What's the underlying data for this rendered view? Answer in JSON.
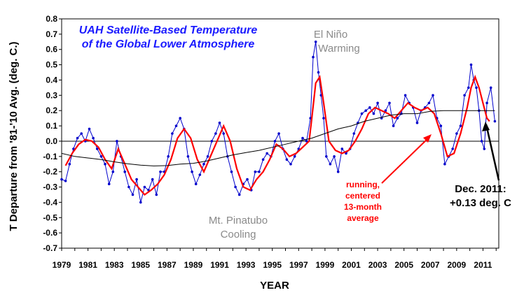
{
  "chart_data": {
    "type": "line",
    "title": [
      "UAH Satellite-Based Temperature",
      "of the Global Lower Atmosphere"
    ],
    "xlabel": "YEAR",
    "ylabel": "T Departure from '81-'10 Avg. (deg. C.)",
    "xlim": [
      1979,
      2012.2
    ],
    "ylim": [
      -0.7,
      0.8
    ],
    "yticks": [
      "0.8",
      "0.7",
      "0.6",
      "0.5",
      "0.4",
      "0.3",
      "0.2",
      "0.1",
      "0.0",
      "-0.1",
      "-0.2",
      "-0.3",
      "-0.4",
      "-0.5",
      "-0.6",
      "-0.7"
    ],
    "xticks": [
      "1979",
      "1981",
      "1983",
      "1985",
      "1987",
      "1989",
      "1991",
      "1993",
      "1995",
      "1997",
      "1999",
      "2001",
      "2003",
      "2005",
      "2007",
      "2009",
      "2011"
    ],
    "colors": {
      "monthly": "#0000cc",
      "running_mean": "#ff0000",
      "trend": "#000000",
      "title": "#1a1aff"
    },
    "series": [
      {
        "style": "monthly",
        "x": [
          1979.0,
          1979.3,
          1979.6,
          1979.9,
          1980.2,
          1980.5,
          1980.8,
          1981.1,
          1981.4,
          1981.7,
          1982.0,
          1982.3,
          1982.6,
          1982.9,
          1983.2,
          1983.5,
          1983.8,
          1984.1,
          1984.4,
          1984.7,
          1985.0,
          1985.3,
          1985.6,
          1985.9,
          1986.2,
          1986.5,
          1986.8,
          1987.1,
          1987.4,
          1987.7,
          1988.0,
          1988.3,
          1988.6,
          1988.9,
          1989.2,
          1989.5,
          1989.8,
          1990.1,
          1990.4,
          1990.7,
          1991.0,
          1991.3,
          1991.6,
          1991.9,
          1992.2,
          1992.5,
          1992.8,
          1993.1,
          1993.4,
          1993.7,
          1994.0,
          1994.3,
          1994.6,
          1994.9,
          1995.2,
          1995.5,
          1995.8,
          1996.1,
          1996.4,
          1996.7,
          1997.0,
          1997.3,
          1997.6,
          1997.9,
          1998.1,
          1998.3,
          1998.5,
          1998.7,
          1998.9,
          1999.1,
          1999.4,
          1999.7,
          2000.0,
          2000.3,
          2000.6,
          2000.9,
          2001.2,
          2001.5,
          2001.8,
          2002.1,
          2002.4,
          2002.7,
          2003.0,
          2003.3,
          2003.6,
          2003.9,
          2004.2,
          2004.5,
          2004.8,
          2005.1,
          2005.4,
          2005.7,
          2006.0,
          2006.3,
          2006.6,
          2006.9,
          2007.2,
          2007.5,
          2007.8,
          2008.1,
          2008.4,
          2008.7,
          2009.0,
          2009.3,
          2009.6,
          2009.9,
          2010.1,
          2010.3,
          2010.5,
          2010.7,
          2010.9,
          2011.1,
          2011.3,
          2011.6,
          2011.9
        ],
        "values": [
          -0.25,
          -0.26,
          -0.15,
          -0.05,
          0.02,
          0.05,
          0.0,
          0.08,
          0.02,
          -0.05,
          -0.1,
          -0.15,
          -0.28,
          -0.2,
          0.0,
          -0.1,
          -0.2,
          -0.3,
          -0.35,
          -0.25,
          -0.4,
          -0.3,
          -0.32,
          -0.25,
          -0.35,
          -0.2,
          -0.2,
          -0.1,
          0.05,
          0.1,
          0.15,
          0.08,
          -0.1,
          -0.2,
          -0.28,
          -0.22,
          -0.15,
          -0.1,
          0.0,
          0.05,
          0.12,
          0.05,
          -0.1,
          -0.2,
          -0.3,
          -0.35,
          -0.28,
          -0.25,
          -0.32,
          -0.2,
          -0.2,
          -0.12,
          -0.08,
          -0.1,
          0.0,
          0.05,
          -0.05,
          -0.12,
          -0.15,
          -0.1,
          -0.05,
          0.02,
          0.0,
          0.15,
          0.55,
          0.65,
          0.45,
          0.3,
          0.15,
          -0.1,
          -0.15,
          -0.1,
          -0.2,
          -0.05,
          -0.08,
          -0.05,
          0.05,
          0.12,
          0.18,
          0.2,
          0.22,
          0.18,
          0.25,
          0.15,
          0.2,
          0.25,
          0.1,
          0.15,
          0.18,
          0.3,
          0.25,
          0.22,
          0.12,
          0.2,
          0.22,
          0.25,
          0.3,
          0.15,
          0.1,
          -0.15,
          -0.1,
          -0.05,
          0.05,
          0.1,
          0.3,
          0.35,
          0.5,
          0.4,
          0.35,
          0.2,
          0.0,
          -0.05,
          0.25,
          0.35,
          0.13
        ]
      },
      {
        "name": "running, centered 13-month average",
        "style": "running_mean",
        "x": [
          1979.3,
          1979.8,
          1980.3,
          1980.8,
          1981.3,
          1981.8,
          1982.3,
          1982.8,
          1983.3,
          1983.8,
          1984.3,
          1984.8,
          1985.3,
          1985.8,
          1986.3,
          1986.8,
          1987.3,
          1987.8,
          1988.3,
          1988.8,
          1989.3,
          1989.8,
          1990.3,
          1990.8,
          1991.3,
          1991.8,
          1992.3,
          1992.8,
          1993.3,
          1993.8,
          1994.3,
          1994.8,
          1995.3,
          1995.8,
          1996.3,
          1996.8,
          1997.3,
          1997.8,
          1998.0,
          1998.3,
          1998.6,
          1998.9,
          1999.3,
          1999.8,
          2000.3,
          2000.8,
          2001.3,
          2001.8,
          2002.3,
          2002.8,
          2003.3,
          2003.8,
          2004.3,
          2004.8,
          2005.3,
          2005.8,
          2006.3,
          2006.8,
          2007.3,
          2007.8,
          2008.3,
          2008.8,
          2009.3,
          2009.8,
          2010.1,
          2010.4,
          2010.7,
          2011.0,
          2011.3,
          2011.5
        ],
        "values": [
          -0.16,
          -0.08,
          -0.02,
          0.01,
          0.0,
          -0.04,
          -0.12,
          -0.18,
          -0.05,
          -0.15,
          -0.25,
          -0.3,
          -0.35,
          -0.32,
          -0.28,
          -0.22,
          -0.12,
          0.02,
          0.08,
          0.02,
          -0.12,
          -0.2,
          -0.1,
          0.0,
          0.1,
          0.0,
          -0.18,
          -0.3,
          -0.32,
          -0.25,
          -0.2,
          -0.12,
          -0.02,
          -0.05,
          -0.1,
          -0.08,
          -0.04,
          0.0,
          0.15,
          0.38,
          0.42,
          0.25,
          0.0,
          -0.06,
          -0.08,
          -0.06,
          0.0,
          0.08,
          0.18,
          0.22,
          0.2,
          0.18,
          0.15,
          0.2,
          0.25,
          0.22,
          0.2,
          0.22,
          0.18,
          0.05,
          -0.1,
          -0.08,
          0.05,
          0.22,
          0.35,
          0.42,
          0.35,
          0.25,
          0.15,
          0.13
        ]
      },
      {
        "style": "trend",
        "x": [
          1979,
          1980,
          1981,
          1982,
          1983,
          1984,
          1985,
          1986,
          1987,
          1988,
          1989,
          1990,
          1991,
          1992,
          1993,
          1994,
          1995,
          1996,
          1997,
          1998,
          1999,
          2000,
          2001,
          2002,
          2003,
          2004,
          2005,
          2006,
          2007,
          2008,
          2009,
          2010,
          2011,
          2011.9
        ],
        "values": [
          -0.08,
          -0.1,
          -0.11,
          -0.12,
          -0.135,
          -0.148,
          -0.157,
          -0.162,
          -0.16,
          -0.15,
          -0.145,
          -0.13,
          -0.11,
          -0.09,
          -0.075,
          -0.06,
          -0.04,
          -0.02,
          0.0,
          0.02,
          0.05,
          0.08,
          0.1,
          0.13,
          0.15,
          0.17,
          0.18,
          0.18,
          0.195,
          0.2,
          0.2,
          0.2,
          0.2,
          0.2
        ]
      }
    ],
    "annotations": {
      "el_nino": [
        "El Niño",
        "Warming"
      ],
      "pinatubo": [
        "Mt. Pinatubo",
        "Cooling"
      ],
      "running": [
        "running,",
        "centered",
        "13-month",
        "average"
      ],
      "dec2011": [
        "Dec. 2011:",
        "+0.13 deg. C"
      ]
    }
  }
}
